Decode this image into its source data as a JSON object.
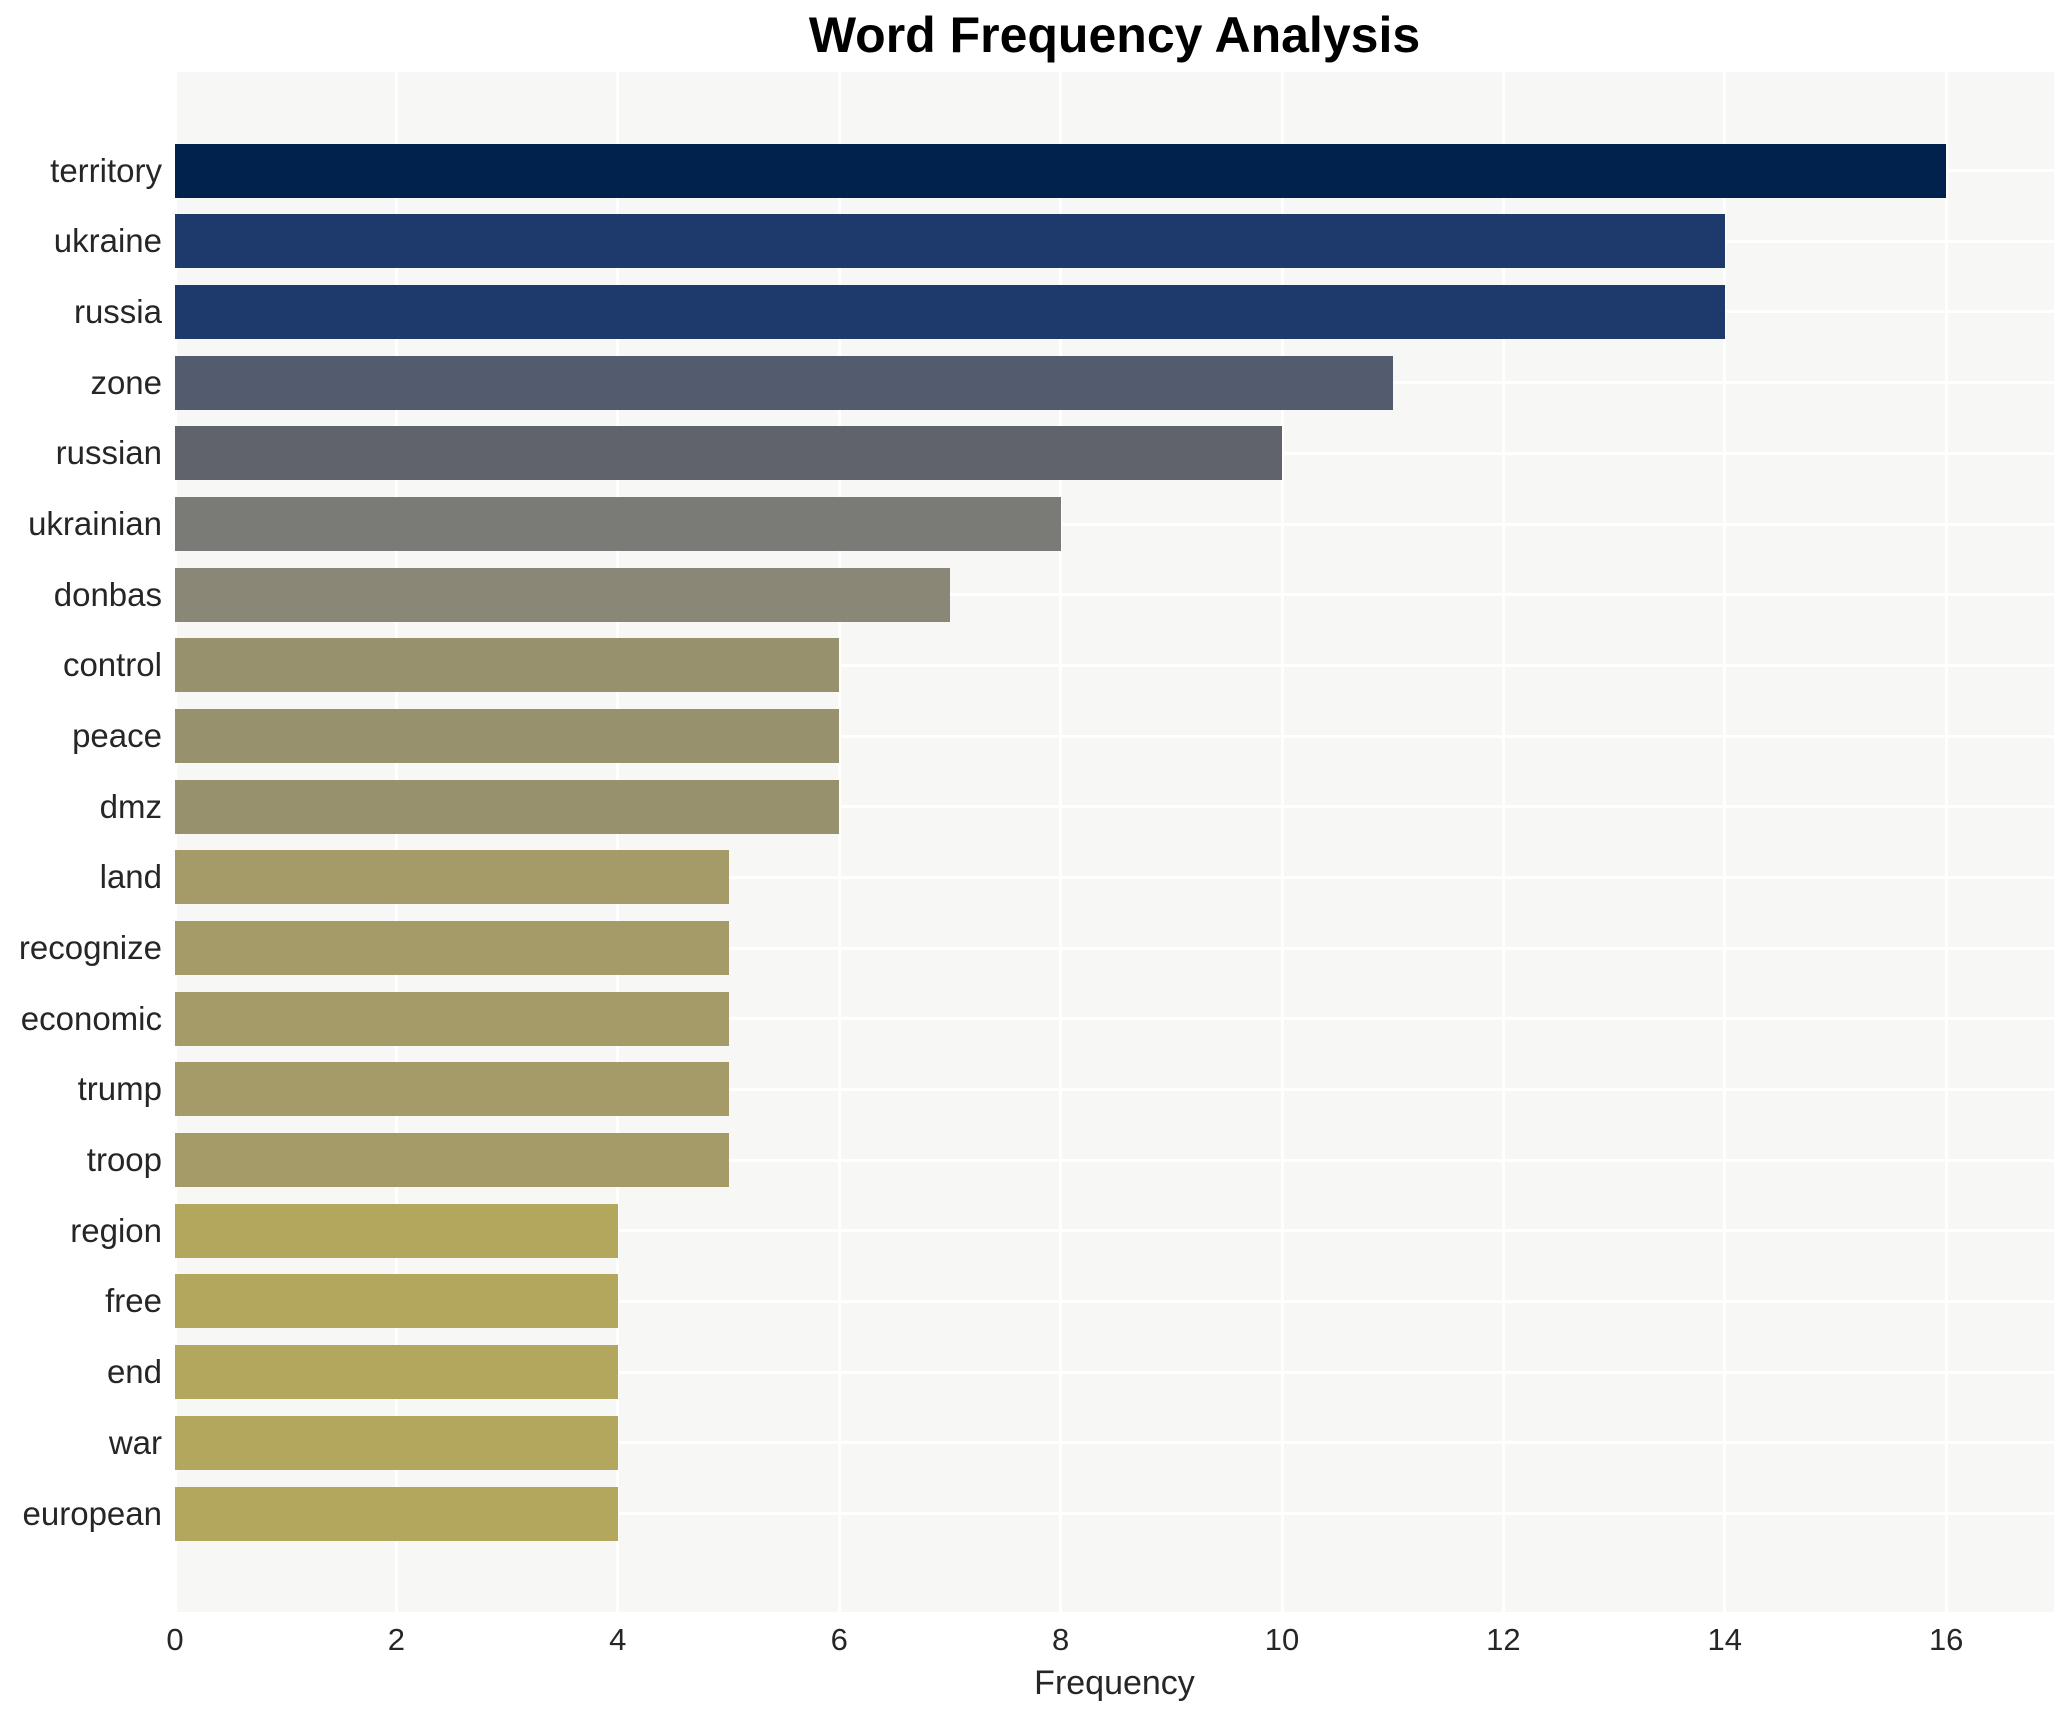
{
  "title": "Word Frequency Analysis",
  "chart_data": {
    "type": "bar",
    "orientation": "horizontal",
    "title": "Word Frequency Analysis",
    "xlabel": "Frequency",
    "ylabel": "",
    "categories": [
      "territory",
      "ukraine",
      "russia",
      "zone",
      "russian",
      "ukrainian",
      "donbas",
      "control",
      "peace",
      "dmz",
      "land",
      "recognize",
      "economic",
      "trump",
      "troop",
      "region",
      "free",
      "end",
      "war",
      "european"
    ],
    "values": [
      16,
      14,
      14,
      11,
      10,
      8,
      7,
      6,
      6,
      6,
      5,
      5,
      5,
      5,
      5,
      4,
      4,
      4,
      4,
      4
    ],
    "bar_colors": [
      "#01224d",
      "#1e3a6c",
      "#1e3a6c",
      "#535b6f",
      "#60626c",
      "#7a7a76",
      "#8a8777",
      "#98916e",
      "#98916e",
      "#98916e",
      "#a59b68",
      "#a59b68",
      "#a59b68",
      "#a59b68",
      "#a59b68",
      "#b3a75e",
      "#b3a75e",
      "#b3a75e",
      "#b3a75e",
      "#b3a75e"
    ],
    "xticks": [
      0,
      2,
      4,
      6,
      8,
      10,
      12,
      14,
      16
    ],
    "xlim": [
      0,
      16.97
    ],
    "grid": true,
    "legend": "none",
    "plot_background": "#f7f7f6",
    "grid_color": "#ffffff",
    "text_color": "#262626"
  }
}
